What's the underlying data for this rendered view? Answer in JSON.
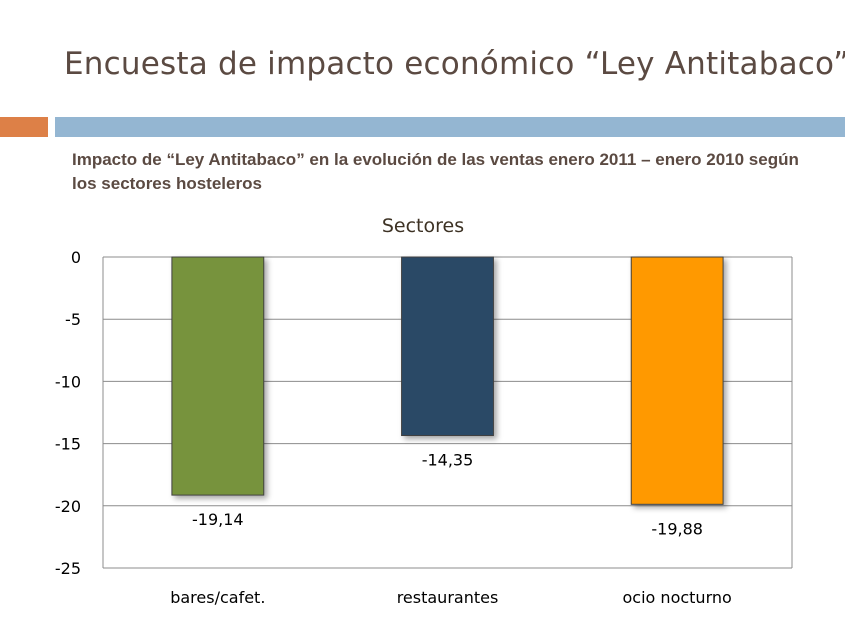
{
  "slide": {
    "title": "Encuesta de impacto económico “Ley Antitabaco”",
    "subtitle": "Impacto de “Ley Antitabaco” en la evolución de las ventas enero 2011 – enero 2010 según los sectores hosteleros"
  },
  "colors": {
    "accent_orange": "#dd8047",
    "accent_blue": "#94b6d2"
  },
  "chart_data": {
    "type": "bar",
    "title": "Sectores",
    "categories": [
      "bares/cafet.",
      "restaurantes",
      "ocio nocturno"
    ],
    "values": [
      -19.14,
      -14.35,
      -19.88
    ],
    "data_labels": [
      "-19,14",
      "-14,35",
      "-19,88"
    ],
    "colors": [
      "#77933c",
      "#2c4a66",
      "#ff9900"
    ],
    "ylim": [
      -25,
      0
    ],
    "yticks": [
      0,
      -5,
      -10,
      -15,
      -20,
      -25
    ],
    "grid": true,
    "legend": "none"
  }
}
